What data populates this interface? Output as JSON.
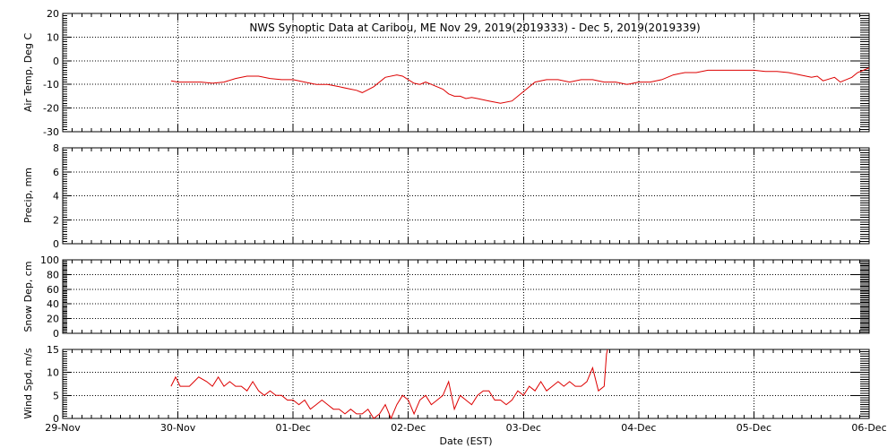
{
  "title": "NWS Synoptic Data at Caribou, ME   Nov 29, 2019(2019333) - Dec  5, 2019(2019339)",
  "colors": {
    "series": "#dd0000",
    "axes": "#000000",
    "background": "#ffffff"
  },
  "x_axis": {
    "label": "Date (EST)",
    "range_days": [
      0,
      7
    ],
    "tick_labels": [
      "29-Nov",
      "30-Nov",
      "01-Dec",
      "02-Dec",
      "03-Dec",
      "04-Dec",
      "05-Dec",
      "06-Dec"
    ]
  },
  "chart_data": [
    {
      "type": "line",
      "ylabel": "Air Temp, Deg C",
      "ylim": [
        -30,
        20
      ],
      "yticks": [
        20,
        10,
        0,
        -10,
        -20,
        -30
      ],
      "grid": true,
      "series": [
        {
          "x": [
            0.94,
            1.0,
            1.1,
            1.2,
            1.3,
            1.4,
            1.5,
            1.6,
            1.7,
            1.8,
            1.9,
            2.0,
            2.1,
            2.2,
            2.3,
            2.4,
            2.5,
            2.55,
            2.6,
            2.7,
            2.8,
            2.9,
            2.95,
            3.0,
            3.05,
            3.1,
            3.15,
            3.2,
            3.3,
            3.35,
            3.4,
            3.45,
            3.5,
            3.55,
            3.6,
            3.7,
            3.8,
            3.9,
            4.0,
            4.1,
            4.2,
            4.3,
            4.4,
            4.5,
            4.6,
            4.7,
            4.8,
            4.9,
            5.0,
            5.1,
            5.2,
            5.3,
            5.4,
            5.5,
            5.6,
            5.7,
            5.8,
            5.9,
            6.0,
            6.1,
            6.2,
            6.3,
            6.4,
            6.5,
            6.55,
            6.6,
            6.7,
            6.75,
            6.8,
            6.85,
            6.9,
            6.95,
            7.0
          ],
          "y": [
            -8.5,
            -9,
            -9,
            -9,
            -9.5,
            -9,
            -7.5,
            -6.5,
            -6.5,
            -7.5,
            -8,
            -8,
            -9,
            -10,
            -10,
            -11,
            -12,
            -12.5,
            -13.5,
            -11,
            -7,
            -6,
            -6.5,
            -8,
            -9.5,
            -10,
            -9,
            -10,
            -12,
            -14,
            -15,
            -15,
            -16,
            -15.5,
            -16,
            -17,
            -18,
            -17,
            -13,
            -9,
            -8,
            -8,
            -9,
            -8,
            -8,
            -9,
            -9,
            -10,
            -9,
            -9,
            -8,
            -6,
            -5,
            -5,
            -4,
            -4,
            -4,
            -4,
            -4,
            -4.5,
            -4.5,
            -5,
            -6,
            -7,
            -6.5,
            -8.5,
            -7,
            -9,
            -8,
            -7,
            -5,
            -4,
            -3
          ]
        }
      ]
    },
    {
      "type": "line",
      "ylabel": "Precip, mm",
      "ylim": [
        0,
        8
      ],
      "yticks": [
        8,
        6,
        4,
        2,
        0
      ],
      "grid": true,
      "series": [
        {
          "x": [],
          "y": []
        }
      ]
    },
    {
      "type": "line",
      "ylabel": "Snow Dep, cm",
      "ylim": [
        0,
        100
      ],
      "yticks": [
        100,
        80,
        60,
        40,
        20,
        0
      ],
      "grid": true,
      "series": [
        {
          "x": [],
          "y": []
        }
      ]
    },
    {
      "type": "line",
      "ylabel": "Wind Spd, m/s",
      "ylim": [
        0,
        15
      ],
      "yticks": [
        15,
        10,
        5,
        0
      ],
      "grid": true,
      "series": [
        {
          "x": [
            0.94,
            0.98,
            1.02,
            1.1,
            1.18,
            1.25,
            1.3,
            1.35,
            1.4,
            1.45,
            1.5,
            1.55,
            1.6,
            1.65,
            1.7,
            1.75,
            1.8,
            1.85,
            1.9,
            1.95,
            2.0,
            2.05,
            2.1,
            2.15,
            2.2,
            2.25,
            2.3,
            2.35,
            2.4,
            2.45,
            2.5,
            2.55,
            2.6,
            2.65,
            2.7,
            2.75,
            2.8,
            2.85,
            2.9,
            2.95,
            3.0,
            3.05,
            3.1,
            3.15,
            3.2,
            3.25,
            3.3,
            3.35,
            3.4,
            3.45,
            3.5,
            3.55,
            3.6,
            3.65,
            3.7,
            3.75,
            3.8,
            3.85,
            3.9,
            3.95,
            4.0,
            4.05,
            4.1,
            4.15,
            4.2,
            4.25,
            4.3,
            4.35,
            4.4,
            4.45,
            4.5,
            4.55,
            4.6,
            4.65,
            4.7,
            4.72,
            4.73
          ],
          "y": [
            7,
            9,
            7,
            7,
            9,
            8,
            7,
            9,
            7,
            8,
            7,
            7,
            6,
            8,
            6,
            5,
            6,
            5,
            5,
            4,
            4,
            3,
            4,
            2,
            3,
            4,
            3,
            2,
            2,
            1,
            2,
            1,
            1,
            2,
            0,
            1,
            3,
            0,
            3,
            5,
            4,
            1,
            4,
            5,
            3,
            4,
            5,
            8,
            2,
            5,
            4,
            3,
            5,
            6,
            6,
            4,
            4,
            3,
            4,
            6,
            5,
            7,
            6,
            8,
            6,
            7,
            8,
            7,
            8,
            7,
            7,
            8,
            11,
            6,
            7,
            14,
            15
          ]
        }
      ]
    }
  ]
}
